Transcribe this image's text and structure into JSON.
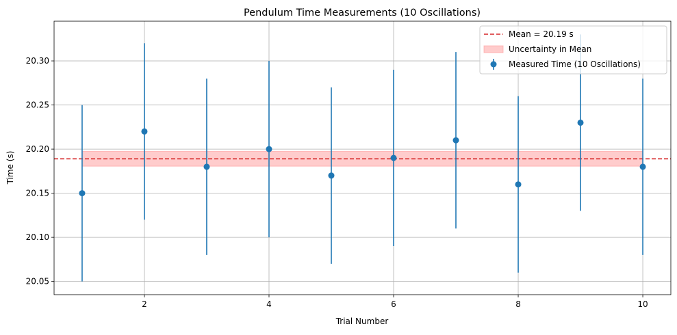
{
  "chart_data": {
    "type": "scatter",
    "title": "Pendulum Time Measurements (10 Oscillations)",
    "xlabel": "Trial Number",
    "ylabel": "Time (s)",
    "xlim": [
      0.55,
      10.45
    ],
    "ylim": [
      20.035,
      20.345
    ],
    "xticks": [
      2,
      4,
      6,
      8,
      10
    ],
    "yticks": [
      20.05,
      20.1,
      20.15,
      20.2,
      20.25,
      20.3
    ],
    "xtick_labels": [
      "2",
      "4",
      "6",
      "8",
      "10"
    ],
    "ytick_labels": [
      "20.05",
      "20.10",
      "20.15",
      "20.20",
      "20.25",
      "20.30"
    ],
    "grid": true,
    "legend_position": "top-right",
    "series": [
      {
        "name": "Measured Time (10 Oscillations)",
        "kind": "errorbar",
        "color": "#1f77b4",
        "x": [
          1,
          2,
          3,
          4,
          5,
          6,
          7,
          8,
          9,
          10
        ],
        "y": [
          20.15,
          20.22,
          20.18,
          20.2,
          20.17,
          20.19,
          20.21,
          20.16,
          20.23,
          20.18
        ],
        "yerr": 0.1
      },
      {
        "name": "Mean = 20.19 s",
        "kind": "hline",
        "color": "#d62728",
        "linestyle": "dashed",
        "y": 20.189
      },
      {
        "name": "Uncertainty in Mean",
        "kind": "band",
        "color": "#ff9999",
        "x_range": [
          1,
          10
        ],
        "y_range": [
          20.1806,
          20.1974
        ]
      }
    ]
  }
}
